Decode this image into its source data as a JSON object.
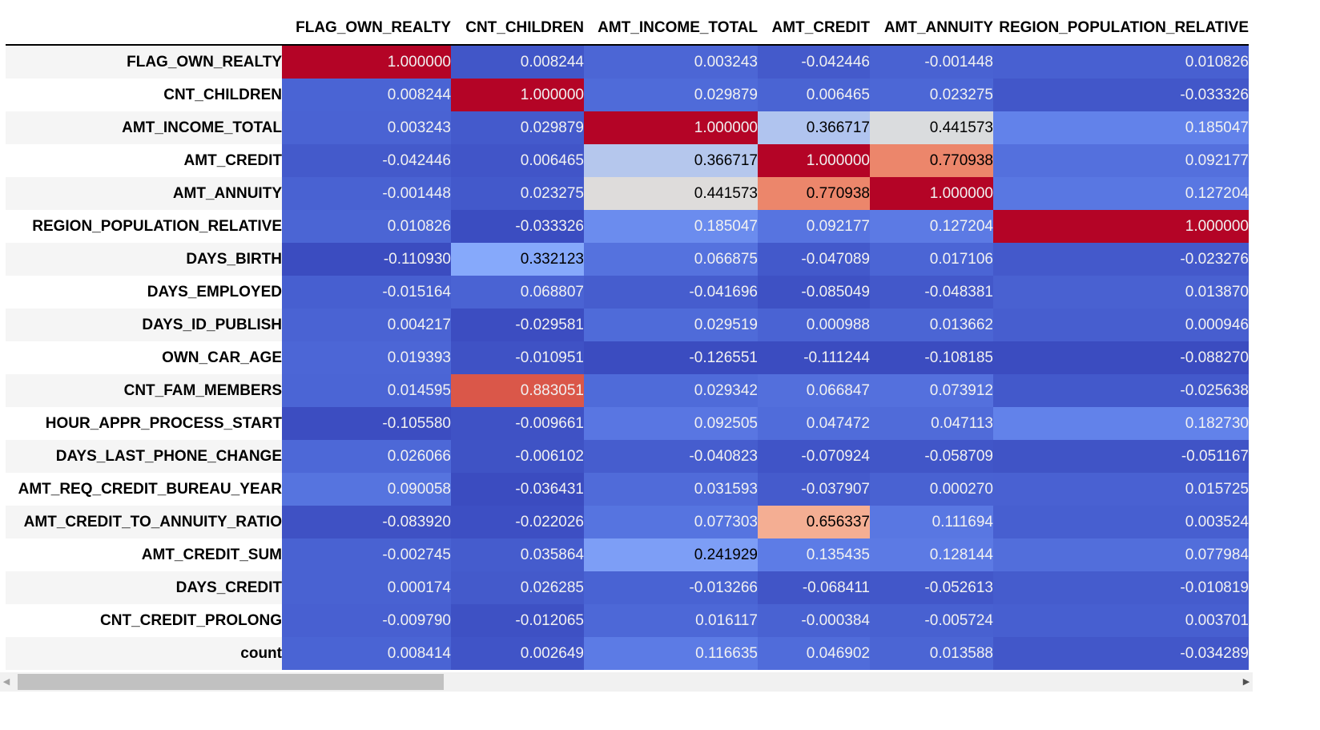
{
  "table": {
    "columns": [
      "FLAG_OWN_REALTY",
      "CNT_CHILDREN",
      "AMT_INCOME_TOTAL",
      "AMT_CREDIT",
      "AMT_ANNUITY",
      "REGION_POPULATION_RELATIVE"
    ],
    "rows": [
      {
        "label": "FLAG_OWN_REALTY",
        "cells": [
          "1.000000",
          "0.008244",
          "0.003243",
          "-0.042446",
          "-0.001448",
          "0.010826"
        ]
      },
      {
        "label": "CNT_CHILDREN",
        "cells": [
          "0.008244",
          "1.000000",
          "0.029879",
          "0.006465",
          "0.023275",
          "-0.033326"
        ]
      },
      {
        "label": "AMT_INCOME_TOTAL",
        "cells": [
          "0.003243",
          "0.029879",
          "1.000000",
          "0.366717",
          "0.441573",
          "0.185047"
        ]
      },
      {
        "label": "AMT_CREDIT",
        "cells": [
          "-0.042446",
          "0.006465",
          "0.366717",
          "1.000000",
          "0.770938",
          "0.092177"
        ]
      },
      {
        "label": "AMT_ANNUITY",
        "cells": [
          "-0.001448",
          "0.023275",
          "0.441573",
          "0.770938",
          "1.000000",
          "0.127204"
        ]
      },
      {
        "label": "REGION_POPULATION_RELATIVE",
        "cells": [
          "0.010826",
          "-0.033326",
          "0.185047",
          "0.092177",
          "0.127204",
          "1.000000"
        ]
      },
      {
        "label": "DAYS_BIRTH",
        "cells": [
          "-0.110930",
          "0.332123",
          "0.066875",
          "-0.047089",
          "0.017106",
          "-0.023276"
        ]
      },
      {
        "label": "DAYS_EMPLOYED",
        "cells": [
          "-0.015164",
          "0.068807",
          "-0.041696",
          "-0.085049",
          "-0.048381",
          "0.013870"
        ]
      },
      {
        "label": "DAYS_ID_PUBLISH",
        "cells": [
          "0.004217",
          "-0.029581",
          "0.029519",
          "0.000988",
          "0.013662",
          "0.000946"
        ]
      },
      {
        "label": "OWN_CAR_AGE",
        "cells": [
          "0.019393",
          "-0.010951",
          "-0.126551",
          "-0.111244",
          "-0.108185",
          "-0.088270"
        ]
      },
      {
        "label": "CNT_FAM_MEMBERS",
        "cells": [
          "0.014595",
          "0.883051",
          "0.029342",
          "0.066847",
          "0.073912",
          "-0.025638"
        ]
      },
      {
        "label": "HOUR_APPR_PROCESS_START",
        "cells": [
          "-0.105580",
          "-0.009661",
          "0.092505",
          "0.047472",
          "0.047113",
          "0.182730"
        ]
      },
      {
        "label": "DAYS_LAST_PHONE_CHANGE",
        "cells": [
          "0.026066",
          "-0.006102",
          "-0.040823",
          "-0.070924",
          "-0.058709",
          "-0.051167"
        ]
      },
      {
        "label": "AMT_REQ_CREDIT_BUREAU_YEAR",
        "cells": [
          "0.090058",
          "-0.036431",
          "0.031593",
          "-0.037907",
          "0.000270",
          "0.015725"
        ]
      },
      {
        "label": "AMT_CREDIT_TO_ANNUITY_RATIO",
        "cells": [
          "-0.083920",
          "-0.022026",
          "0.077303",
          "0.656337",
          "0.111694",
          "0.003524"
        ]
      },
      {
        "label": "AMT_CREDIT_SUM",
        "cells": [
          "-0.002745",
          "0.035864",
          "0.241929",
          "0.135435",
          "0.128144",
          "0.077984"
        ]
      },
      {
        "label": "DAYS_CREDIT",
        "cells": [
          "0.000174",
          "0.026285",
          "-0.013266",
          "-0.068411",
          "-0.052613",
          "-0.010819"
        ]
      },
      {
        "label": "CNT_CREDIT_PROLONG",
        "cells": [
          "-0.009790",
          "-0.012065",
          "0.016117",
          "-0.000384",
          "-0.005724",
          "0.003701"
        ]
      },
      {
        "label": "count",
        "cells": [
          "0.008414",
          "0.002649",
          "0.116635",
          "0.046902",
          "0.013588",
          "-0.034289"
        ]
      }
    ]
  },
  "colormap": {
    "name": "coolwarm",
    "low_color": "#3b4cc0",
    "mid_color": "#dddddd",
    "high_color": "#b40426",
    "dark_text_color": "#f1f1f1",
    "light_text_color": "#000000"
  },
  "scrollbar": {
    "left_arrow_icon": "triangle-left-icon",
    "right_arrow_icon": "triangle-right-icon"
  }
}
